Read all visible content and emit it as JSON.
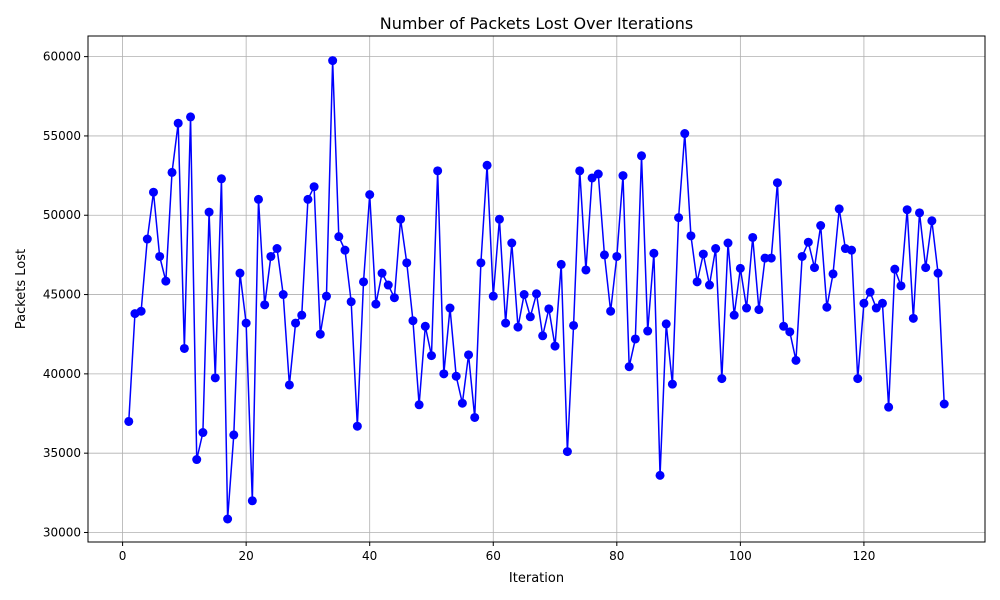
{
  "chart_data": {
    "type": "line",
    "title": "Number of Packets Lost Over Iterations",
    "xlabel": "Iteration",
    "ylabel": "Packets Lost",
    "xlim": [
      -5.6,
      139.6
    ],
    "ylim": [
      29400,
      61300
    ],
    "x_ticks": [
      0,
      20,
      40,
      60,
      80,
      100,
      120
    ],
    "y_ticks": [
      30000,
      35000,
      40000,
      45000,
      50000,
      55000,
      60000
    ],
    "grid": true,
    "legend": "none",
    "marker": "circle",
    "color": "#0000ff",
    "series": [
      {
        "x": [
          1,
          2,
          3,
          4,
          5,
          6,
          7,
          8,
          9,
          10,
          11,
          12,
          13,
          14,
          15,
          16,
          17,
          18,
          19,
          20,
          21,
          22,
          23,
          24,
          25,
          26,
          27,
          28,
          29,
          30,
          31,
          32,
          33,
          34,
          35,
          36,
          37,
          38,
          39,
          40,
          41,
          42,
          43,
          44,
          45,
          46,
          47,
          48,
          49,
          50,
          51,
          52,
          53,
          54,
          55,
          56,
          57,
          58,
          59,
          60,
          61,
          62,
          63,
          64,
          65,
          66,
          67,
          68,
          69,
          70,
          71,
          72,
          73,
          74,
          75,
          76,
          77,
          78,
          79,
          80,
          81,
          82,
          83,
          84,
          85,
          86,
          87,
          88,
          89,
          90,
          91,
          92,
          93,
          94,
          95,
          96,
          97,
          98,
          99,
          100,
          101,
          102,
          103,
          104,
          105,
          106,
          107,
          108,
          109,
          110,
          111,
          112,
          113,
          114,
          115,
          116,
          117,
          118,
          119,
          120,
          121,
          122,
          123,
          124,
          125,
          126,
          127,
          128,
          129,
          130,
          131,
          132,
          133
        ],
        "values": [
          37000,
          43800,
          43950,
          48500,
          51450,
          47400,
          45850,
          52700,
          55800,
          41600,
          56200,
          34600,
          36300,
          50200,
          39750,
          52300,
          30850,
          36150,
          46350,
          43200,
          32000,
          51000,
          44350,
          47400,
          47900,
          45000,
          39300,
          43200,
          43700,
          51000,
          51800,
          42500,
          44900,
          59750,
          48650,
          47800,
          44550,
          36700,
          45800,
          51300,
          44400,
          46350,
          45600,
          44800,
          49750,
          47000,
          43350,
          38050,
          43000,
          41150,
          52800,
          40000,
          44150,
          39850,
          38150,
          41200,
          37250,
          47000,
          53150,
          44900,
          49750,
          43200,
          48250,
          42950,
          45000,
          43600,
          45050,
          42400,
          44100,
          41750,
          46900,
          35100,
          43050,
          52800,
          46550,
          52350,
          52600,
          47500,
          43950,
          47400,
          52500,
          40450,
          42200,
          53750,
          42700,
          47600,
          33600,
          43150,
          39350,
          49850,
          55150,
          48700,
          45800,
          47550,
          45600,
          47900,
          39700,
          48250,
          43700,
          46650,
          44150,
          48600,
          44050,
          47300,
          47300,
          52050,
          43000,
          42650,
          40850,
          47400,
          48300,
          46700,
          49350,
          44200,
          46300,
          50400,
          47900,
          47800,
          39700,
          44450,
          45150,
          44150,
          44450,
          37900,
          46600,
          45550,
          50350,
          43500,
          50150,
          46700,
          49650,
          46350,
          38100
        ]
      }
    ]
  }
}
